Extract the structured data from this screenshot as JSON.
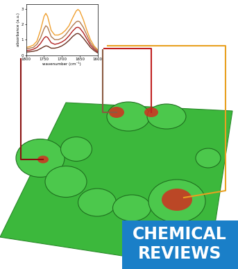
{
  "chart_data": {
    "type": "line",
    "x_label": "wavenumber (cm⁻¹)",
    "y_label": "absorbance (a.u.)",
    "x": [
      1800,
      1790,
      1780,
      1770,
      1760,
      1750,
      1745,
      1740,
      1730,
      1720,
      1710,
      1700,
      1690,
      1680,
      1670,
      1660,
      1655,
      1650,
      1640,
      1630,
      1620,
      1610,
      1600
    ],
    "xlim": [
      1800,
      1600
    ],
    "xticks": [
      1800,
      1750,
      1700,
      1650,
      1600
    ],
    "ylim": [
      0,
      3.3
    ],
    "yticks": [
      0,
      1,
      2,
      3
    ],
    "series": [
      {
        "color": "#f0a030",
        "values": [
          0.5,
          0.55,
          0.65,
          0.9,
          1.6,
          2.5,
          2.7,
          2.5,
          1.6,
          1.3,
          1.3,
          1.4,
          1.6,
          1.9,
          2.4,
          2.85,
          2.95,
          2.85,
          2.3,
          1.6,
          1.0,
          0.6,
          0.35
        ]
      },
      {
        "color": "#b07a50",
        "values": [
          0.4,
          0.45,
          0.5,
          0.7,
          1.1,
          1.7,
          1.9,
          1.8,
          1.2,
          1.0,
          1.0,
          1.1,
          1.3,
          1.6,
          1.9,
          2.15,
          2.2,
          2.15,
          1.8,
          1.3,
          0.8,
          0.5,
          0.3
        ]
      },
      {
        "color": "#b02020",
        "values": [
          0.3,
          0.32,
          0.38,
          0.5,
          0.75,
          1.1,
          1.2,
          1.15,
          0.8,
          0.7,
          0.75,
          0.85,
          1.0,
          1.25,
          1.55,
          1.78,
          1.8,
          1.75,
          1.45,
          1.05,
          0.65,
          0.4,
          0.22
        ]
      },
      {
        "color": "#6a3020",
        "values": [
          0.2,
          0.22,
          0.25,
          0.3,
          0.42,
          0.55,
          0.6,
          0.58,
          0.45,
          0.45,
          0.5,
          0.6,
          0.75,
          0.95,
          1.2,
          1.38,
          1.4,
          1.35,
          1.1,
          0.8,
          0.5,
          0.3,
          0.15
        ]
      }
    ]
  },
  "logo": {
    "lines": [
      "CHEMICAL",
      "REVIEWS"
    ]
  }
}
